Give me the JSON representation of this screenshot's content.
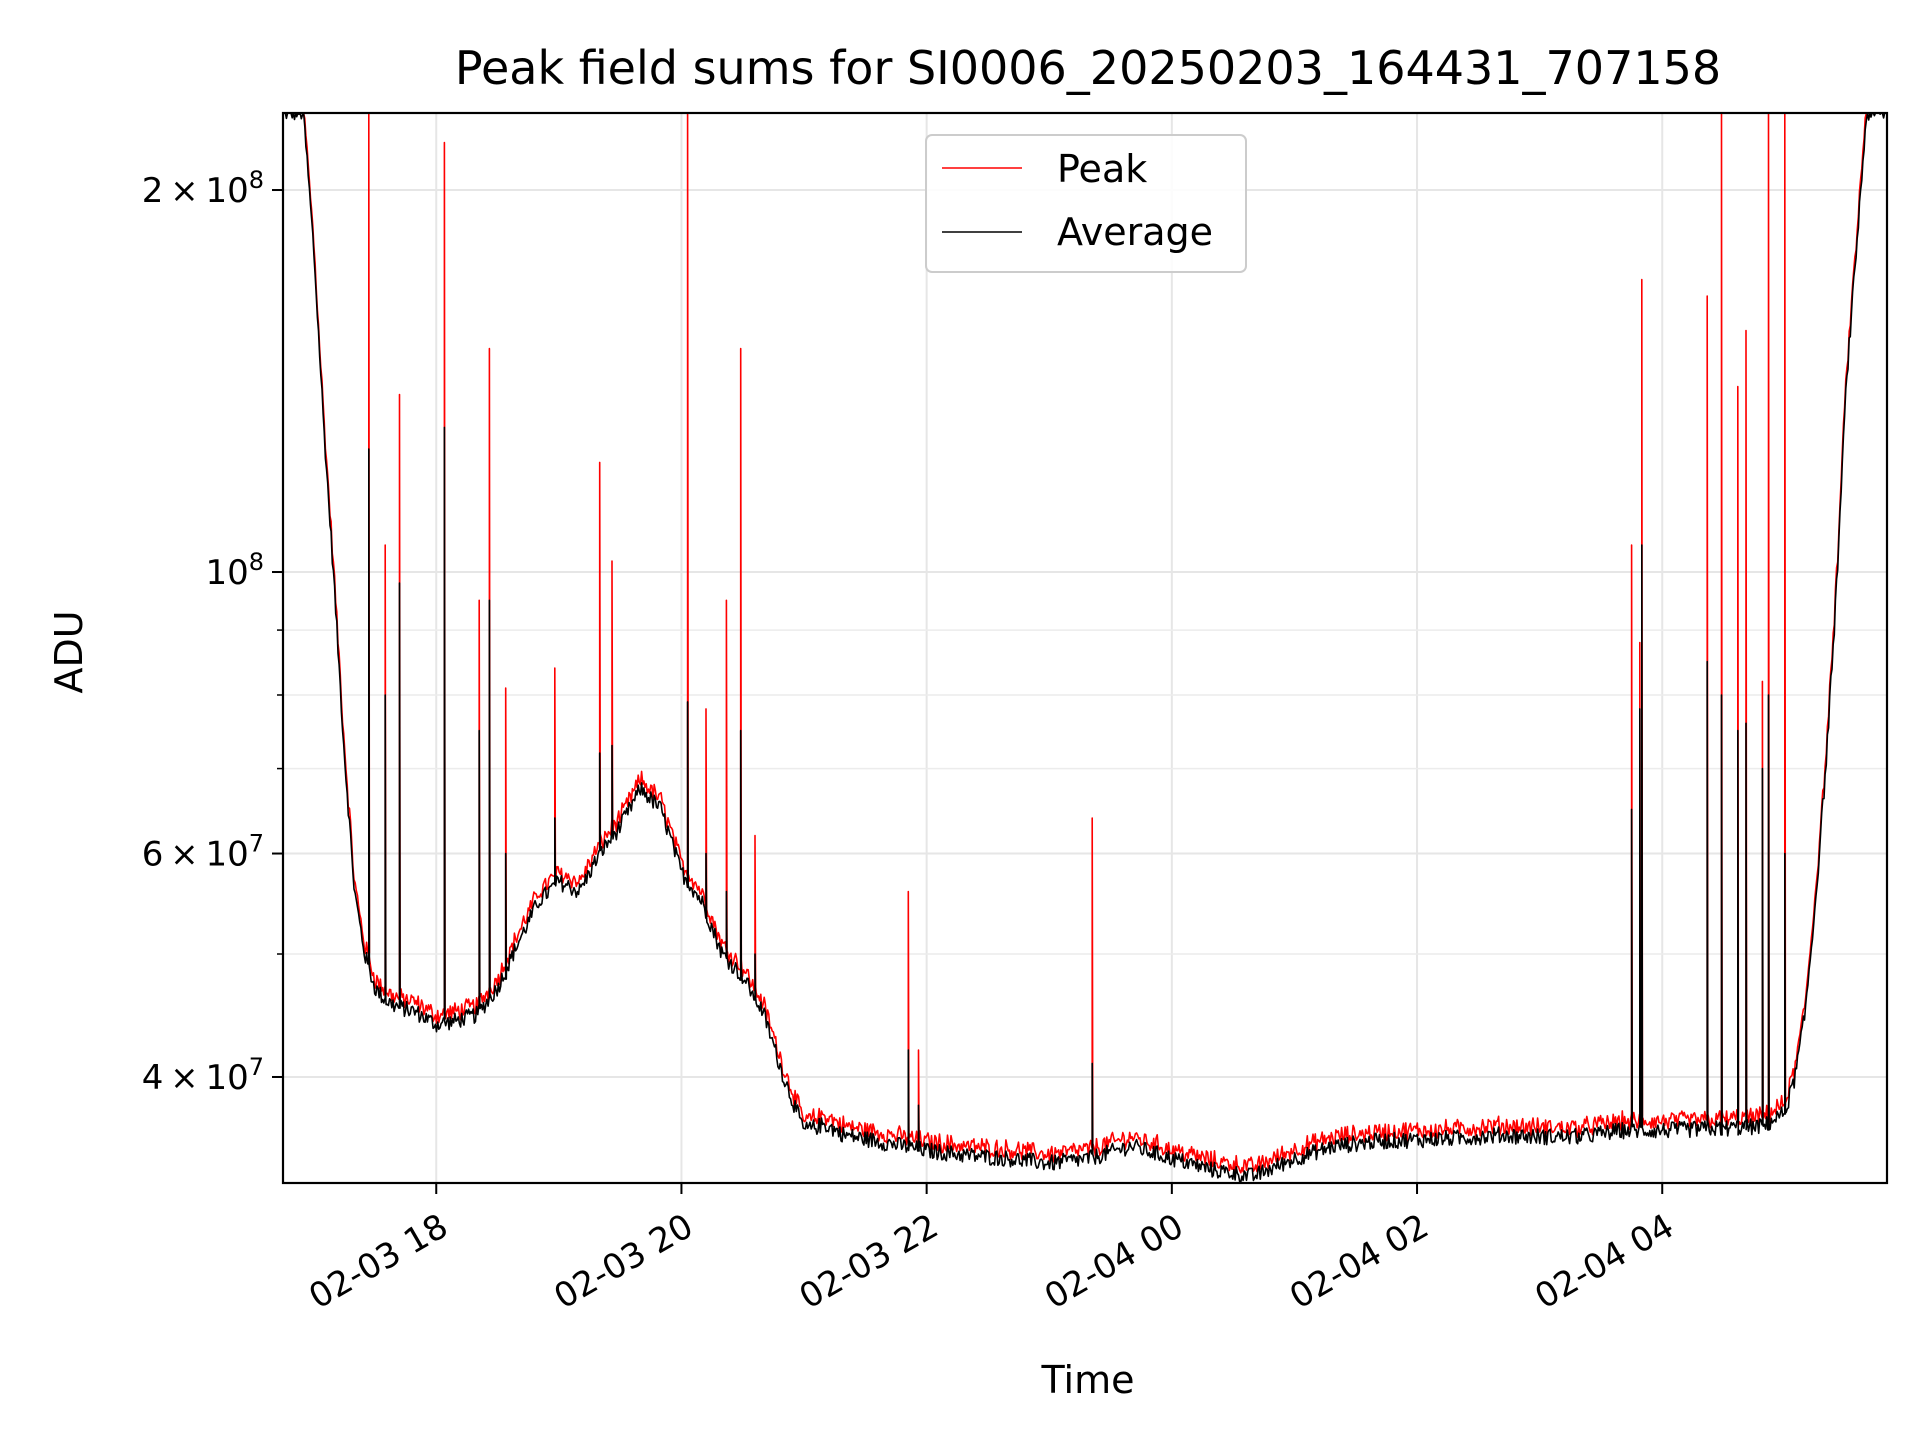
{
  "chart_data": {
    "type": "line",
    "title": "Peak field sums for SI0006_20250203_164431_707158",
    "xlabel": "Time",
    "ylabel": "ADU",
    "yscale": "log",
    "grid": true,
    "legend": "upper center",
    "xlim": [
      "2025-02-03 16:45",
      "2025-02-04 05:50"
    ],
    "ylim": [
      33000000,
      230000000
    ],
    "x_ticks": [
      {
        "value": "2025-02-03 18:00",
        "label": "02-03 18"
      },
      {
        "value": "2025-02-03 20:00",
        "label": "02-03 20"
      },
      {
        "value": "2025-02-03 22:00",
        "label": "02-03 22"
      },
      {
        "value": "2025-02-04 00:00",
        "label": "02-04 00"
      },
      {
        "value": "2025-02-04 02:00",
        "label": "02-04 02"
      },
      {
        "value": "2025-02-04 04:00",
        "label": "02-04 04"
      }
    ],
    "y_major_ticks": [
      {
        "value": 40000000,
        "mantissa": "4",
        "times": "×",
        "base": "10",
        "exp": "7"
      },
      {
        "value": 60000000,
        "mantissa": "6",
        "times": "×",
        "base": "10",
        "exp": "7"
      },
      {
        "value": 100000000,
        "mantissa": "",
        "times": "",
        "base": "10",
        "exp": "8"
      },
      {
        "value": 200000000,
        "mantissa": "2",
        "times": "×",
        "base": "10",
        "exp": "8"
      }
    ],
    "y_minor_ticks": [
      50000000,
      70000000,
      80000000,
      90000000
    ],
    "series": [
      {
        "name": "Peak",
        "color": "#ff0000"
      },
      {
        "name": "Average",
        "color": "#000000"
      }
    ],
    "x": [
      "2025-02-03 16:45",
      "2025-02-03 16:55",
      "2025-02-03 17:00",
      "2025-02-03 17:05",
      "2025-02-03 17:10",
      "2025-02-03 17:15",
      "2025-02-03 17:20",
      "2025-02-03 17:25",
      "2025-02-03 17:30",
      "2025-02-03 17:35",
      "2025-02-03 17:40",
      "2025-02-03 17:50",
      "2025-02-03 18:00",
      "2025-02-03 18:10",
      "2025-02-03 18:20",
      "2025-02-03 18:30",
      "2025-02-03 18:40",
      "2025-02-03 18:50",
      "2025-02-03 19:00",
      "2025-02-03 19:10",
      "2025-02-03 19:20",
      "2025-02-03 19:30",
      "2025-02-03 19:40",
      "2025-02-03 19:50",
      "2025-02-03 20:00",
      "2025-02-03 20:10",
      "2025-02-03 20:20",
      "2025-02-03 20:30",
      "2025-02-03 20:40",
      "2025-02-03 20:50",
      "2025-02-03 21:00",
      "2025-02-03 21:10",
      "2025-02-03 21:20",
      "2025-02-03 21:40",
      "2025-02-03 22:00",
      "2025-02-03 22:20",
      "2025-02-03 22:40",
      "2025-02-03 23:00",
      "2025-02-03 23:20",
      "2025-02-03 23:40",
      "2025-02-04 00:00",
      "2025-02-04 00:20",
      "2025-02-04 00:40",
      "2025-02-04 01:00",
      "2025-02-04 01:20",
      "2025-02-04 01:40",
      "2025-02-04 02:00",
      "2025-02-04 02:20",
      "2025-02-04 02:40",
      "2025-02-04 03:00",
      "2025-02-04 03:20",
      "2025-02-04 03:40",
      "2025-02-04 04:00",
      "2025-02-04 04:20",
      "2025-02-04 04:40",
      "2025-02-04 04:50",
      "2025-02-04 05:00",
      "2025-02-04 05:05",
      "2025-02-04 05:10",
      "2025-02-04 05:15",
      "2025-02-04 05:20",
      "2025-02-04 05:25",
      "2025-02-04 05:30",
      "2025-02-04 05:40",
      "2025-02-04 05:50"
    ],
    "average_values": [
      230000000,
      230000000,
      180000000,
      130000000,
      98000000,
      72000000,
      56000000,
      50000000,
      47000000,
      46000000,
      45500000,
      45000000,
      44000000,
      44300000,
      44800000,
      47000000,
      51000000,
      55000000,
      57000000,
      56000000,
      60000000,
      63000000,
      67500000,
      65000000,
      58000000,
      55000000,
      50000000,
      48000000,
      45000000,
      40000000,
      36300000,
      36700000,
      36000000,
      35500000,
      35000000,
      34700000,
      34500000,
      34200000,
      34500000,
      35300000,
      34500000,
      33800000,
      33400000,
      34500000,
      35300000,
      35600000,
      35700000,
      35800000,
      36000000,
      35900000,
      35900000,
      36300000,
      36300000,
      36400000,
      36500000,
      36600000,
      37500000,
      40000000,
      45000000,
      55000000,
      70000000,
      95000000,
      140000000,
      230000000,
      230000000
    ],
    "peak_offset_ratio": 1.012,
    "spikes": [
      {
        "x": "2025-02-03 17:27",
        "peak": 230000000,
        "average": 125000000
      },
      {
        "x": "2025-02-03 17:35",
        "peak": 105000000,
        "average": 80000000
      },
      {
        "x": "2025-02-03 17:42",
        "peak": 138000000,
        "average": 98000000
      },
      {
        "x": "2025-02-03 18:04",
        "peak": 218000000,
        "average": 130000000
      },
      {
        "x": "2025-02-03 18:21",
        "peak": 95000000,
        "average": 75000000
      },
      {
        "x": "2025-02-03 18:26",
        "peak": 150000000,
        "average": 95000000
      },
      {
        "x": "2025-02-03 18:34",
        "peak": 81000000,
        "average": 60000000
      },
      {
        "x": "2025-02-03 18:58",
        "peak": 84000000,
        "average": 64000000
      },
      {
        "x": "2025-02-03 19:20",
        "peak": 122000000,
        "average": 72000000
      },
      {
        "x": "2025-02-03 19:26",
        "peak": 102000000,
        "average": 73000000
      },
      {
        "x": "2025-02-03 20:03",
        "peak": 230000000,
        "average": 79000000
      },
      {
        "x": "2025-02-03 20:12",
        "peak": 78000000,
        "average": 60000000
      },
      {
        "x": "2025-02-03 20:22",
        "peak": 95000000,
        "average": 56000000
      },
      {
        "x": "2025-02-03 20:29",
        "peak": 150000000,
        "average": 75000000
      },
      {
        "x": "2025-02-03 20:36",
        "peak": 62000000,
        "average": 50000000
      },
      {
        "x": "2025-02-03 21:51",
        "peak": 56000000,
        "average": 42000000
      },
      {
        "x": "2025-02-03 21:56",
        "peak": 42000000,
        "average": 38000000
      },
      {
        "x": "2025-02-03 23:21",
        "peak": 64000000,
        "average": 41000000
      },
      {
        "x": "2025-02-04 03:45",
        "peak": 105000000,
        "average": 65000000
      },
      {
        "x": "2025-02-04 03:49",
        "peak": 88000000,
        "average": 78000000
      },
      {
        "x": "2025-02-04 03:50",
        "peak": 170000000,
        "average": 105000000
      },
      {
        "x": "2025-02-04 04:22",
        "peak": 165000000,
        "average": 85000000
      },
      {
        "x": "2025-02-04 04:29",
        "peak": 230000000,
        "average": 80000000
      },
      {
        "x": "2025-02-04 04:37",
        "peak": 140000000,
        "average": 75000000
      },
      {
        "x": "2025-02-04 04:41",
        "peak": 155000000,
        "average": 76000000
      },
      {
        "x": "2025-02-04 04:49",
        "peak": 82000000,
        "average": 70000000
      },
      {
        "x": "2025-02-04 04:52",
        "peak": 230000000,
        "average": 80000000
      },
      {
        "x": "2025-02-04 05:00",
        "peak": 230000000,
        "average": 60000000
      }
    ]
  }
}
